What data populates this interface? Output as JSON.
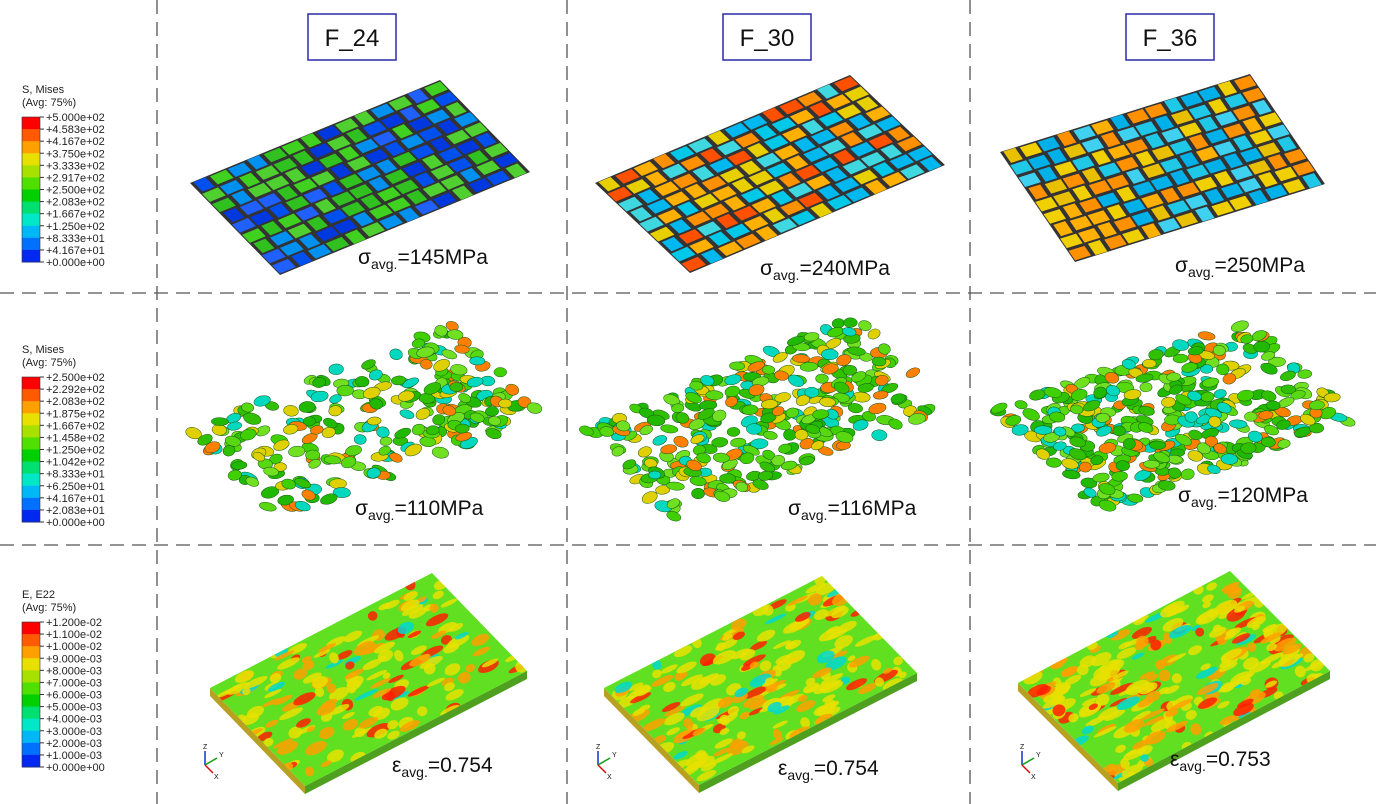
{
  "columns": [
    "F_24",
    "F_30",
    "F_36"
  ],
  "triad": [
    "Z",
    "Y",
    "X"
  ],
  "rows": [
    {
      "legend": {
        "title": "S, Mises",
        "subtitle": "(Avg: 75%)",
        "labels": [
          "+5.000e+02",
          "+4.583e+02",
          "+4.167e+02",
          "+3.750e+02",
          "+3.333e+02",
          "+2.917e+02",
          "+2.500e+02",
          "+2.083e+02",
          "+1.667e+02",
          "+1.250e+02",
          "+8.333e+01",
          "+4.167e+01",
          "+0.000e+00"
        ]
      },
      "annotations": [
        {
          "symbol": "σ",
          "subscript": "avg.",
          "value": "=145MPa"
        },
        {
          "symbol": "σ",
          "subscript": "avg.",
          "value": "=240MPa"
        },
        {
          "symbol": "σ",
          "subscript": "avg.",
          "value": "=250MPa"
        }
      ]
    },
    {
      "legend": {
        "title": "S, Mises",
        "subtitle": "(Avg: 75%)",
        "labels": [
          "+2.500e+02",
          "+2.292e+02",
          "+2.083e+02",
          "+1.875e+02",
          "+1.667e+02",
          "+1.458e+02",
          "+1.250e+02",
          "+1.042e+02",
          "+8.333e+01",
          "+6.250e+01",
          "+4.167e+01",
          "+2.083e+01",
          "+0.000e+00"
        ]
      },
      "annotations": [
        {
          "symbol": "σ",
          "subscript": "avg.",
          "value": "=110MPa"
        },
        {
          "symbol": "σ",
          "subscript": "avg.",
          "value": "=116MPa"
        },
        {
          "symbol": "σ",
          "subscript": "avg.",
          "value": "=120MPa"
        }
      ]
    },
    {
      "legend": {
        "title": "E, E22",
        "subtitle": "(Avg: 75%)",
        "labels": [
          "+1.200e-02",
          "+1.100e-02",
          "+1.000e-02",
          "+9.000e-03",
          "+8.000e-03",
          "+7.000e-03",
          "+6.000e-03",
          "+5.000e-03",
          "+4.000e-03",
          "+3.000e-03",
          "+2.000e-03",
          "+1.000e-03",
          "+0.000e+00"
        ]
      },
      "annotations": [
        {
          "symbol": "ε",
          "subscript": "avg.",
          "value": "=0.754"
        },
        {
          "symbol": "ε",
          "subscript": "avg.",
          "value": "=0.754"
        },
        {
          "symbol": "ε",
          "subscript": "avg.",
          "value": "=0.753"
        }
      ]
    }
  ]
}
